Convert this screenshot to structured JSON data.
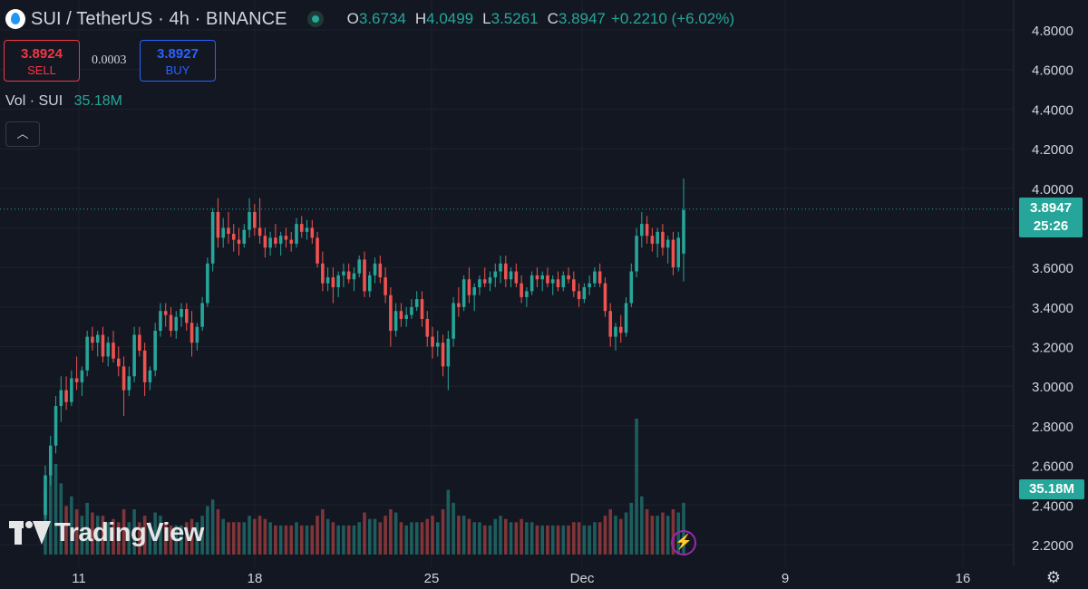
{
  "header": {
    "symbol_title": "SUI / TetherUS · 4h · BINANCE",
    "ohlc": {
      "open_label": "O",
      "open": "3.6734",
      "high_label": "H",
      "high": "4.0499",
      "low_label": "L",
      "low": "3.5261",
      "close_label": "C",
      "close": "3.8947",
      "change": "+0.2210 (+6.02%)"
    }
  },
  "trade": {
    "sell_price": "3.8924",
    "sell_label": "SELL",
    "spread": "0.0003",
    "buy_price": "3.8927",
    "buy_label": "BUY"
  },
  "volume_legend": {
    "name": "Vol · SUI",
    "value": "35.18M"
  },
  "collapse_glyph": "︿",
  "price_tag": {
    "price": "3.8947",
    "countdown": "25:26"
  },
  "volume_tag": "35.18M",
  "brand": "TradingView",
  "icons": [
    "sui-logo-icon",
    "market-open-icon",
    "collapse-icon",
    "tradingview-logo-icon",
    "flash-icon",
    "settings-icon"
  ],
  "colors": {
    "up": "#26a69a",
    "down": "#ef5350",
    "background": "#131722",
    "grid": "#1e222d",
    "axis_text": "#d1d4dc"
  },
  "chart_data": {
    "type": "candlestick",
    "title": "SUI / TetherUS · 4h · BINANCE",
    "interval": "4h",
    "y_ticks": [
      "4.8000",
      "4.6000",
      "4.4000",
      "4.2000",
      "4.0000",
      "3.8000",
      "3.6000",
      "3.4000",
      "3.2000",
      "3.0000",
      "2.8000",
      "2.6000",
      "2.4000",
      "2.2000"
    ],
    "ylim": [
      2.15,
      4.85
    ],
    "x_ticks": [
      "11",
      "18",
      "25",
      "Dec",
      "9",
      "16"
    ],
    "last_price": 3.8947,
    "candles": [
      [
        2.35,
        2.6,
        2.33,
        2.55,
        20
      ],
      [
        2.55,
        2.75,
        2.5,
        2.7,
        30
      ],
      [
        2.7,
        2.95,
        2.66,
        2.9,
        28
      ],
      [
        2.9,
        3.05,
        2.82,
        2.98,
        22
      ],
      [
        2.98,
        3.05,
        2.88,
        2.92,
        15
      ],
      [
        2.92,
        3.08,
        2.9,
        3.04,
        18
      ],
      [
        3.04,
        3.15,
        2.98,
        3.02,
        14
      ],
      [
        3.02,
        3.1,
        2.95,
        3.08,
        12
      ],
      [
        3.08,
        3.28,
        3.05,
        3.25,
        16
      ],
      [
        3.25,
        3.3,
        3.18,
        3.22,
        13
      ],
      [
        3.22,
        3.28,
        3.15,
        3.26,
        12
      ],
      [
        3.26,
        3.3,
        3.12,
        3.15,
        12
      ],
      [
        3.15,
        3.25,
        3.1,
        3.22,
        10
      ],
      [
        3.22,
        3.28,
        3.12,
        3.14,
        11
      ],
      [
        3.14,
        3.2,
        3.05,
        3.1,
        10
      ],
      [
        3.1,
        3.15,
        2.85,
        2.98,
        14
      ],
      [
        2.98,
        3.1,
        2.95,
        3.05,
        10
      ],
      [
        3.05,
        3.3,
        3.02,
        3.26,
        14
      ],
      [
        3.26,
        3.3,
        3.15,
        3.18,
        10
      ],
      [
        3.18,
        3.22,
        2.95,
        3.02,
        12
      ],
      [
        3.02,
        3.1,
        2.98,
        3.08,
        10
      ],
      [
        3.08,
        3.32,
        3.05,
        3.28,
        13
      ],
      [
        3.28,
        3.42,
        3.25,
        3.38,
        12
      ],
      [
        3.38,
        3.42,
        3.3,
        3.36,
        10
      ],
      [
        3.36,
        3.4,
        3.25,
        3.28,
        9
      ],
      [
        3.28,
        3.38,
        3.24,
        3.35,
        9
      ],
      [
        3.35,
        3.42,
        3.3,
        3.39,
        9
      ],
      [
        3.39,
        3.42,
        3.28,
        3.32,
        10
      ],
      [
        3.32,
        3.38,
        3.15,
        3.22,
        11
      ],
      [
        3.22,
        3.32,
        3.18,
        3.3,
        10
      ],
      [
        3.3,
        3.45,
        3.28,
        3.42,
        12
      ],
      [
        3.42,
        3.65,
        3.4,
        3.62,
        15
      ],
      [
        3.62,
        3.9,
        3.58,
        3.88,
        17
      ],
      [
        3.88,
        3.95,
        3.7,
        3.75,
        14
      ],
      [
        3.75,
        3.85,
        3.7,
        3.8,
        11
      ],
      [
        3.8,
        3.88,
        3.72,
        3.77,
        10
      ],
      [
        3.77,
        3.82,
        3.68,
        3.74,
        10
      ],
      [
        3.74,
        3.8,
        3.66,
        3.72,
        10
      ],
      [
        3.72,
        3.82,
        3.7,
        3.79,
        10
      ],
      [
        3.79,
        3.95,
        3.75,
        3.88,
        12
      ],
      [
        3.88,
        3.92,
        3.76,
        3.8,
        11
      ],
      [
        3.8,
        3.95,
        3.72,
        3.76,
        12
      ],
      [
        3.76,
        3.8,
        3.65,
        3.7,
        11
      ],
      [
        3.7,
        3.78,
        3.66,
        3.75,
        10
      ],
      [
        3.75,
        3.82,
        3.7,
        3.72,
        9
      ],
      [
        3.72,
        3.78,
        3.66,
        3.76,
        9
      ],
      [
        3.76,
        3.8,
        3.7,
        3.74,
        9
      ],
      [
        3.74,
        3.78,
        3.68,
        3.72,
        9
      ],
      [
        3.72,
        3.85,
        3.7,
        3.82,
        10
      ],
      [
        3.82,
        3.86,
        3.75,
        3.78,
        9
      ],
      [
        3.78,
        3.84,
        3.74,
        3.8,
        9
      ],
      [
        3.8,
        3.84,
        3.72,
        3.75,
        9
      ],
      [
        3.75,
        3.78,
        3.6,
        3.62,
        12
      ],
      [
        3.62,
        3.68,
        3.48,
        3.52,
        14
      ],
      [
        3.52,
        3.6,
        3.48,
        3.55,
        11
      ],
      [
        3.55,
        3.6,
        3.42,
        3.5,
        10
      ],
      [
        3.5,
        3.58,
        3.45,
        3.56,
        9
      ],
      [
        3.56,
        3.62,
        3.5,
        3.58,
        9
      ],
      [
        3.58,
        3.62,
        3.52,
        3.54,
        9
      ],
      [
        3.54,
        3.6,
        3.48,
        3.57,
        9
      ],
      [
        3.57,
        3.66,
        3.55,
        3.64,
        10
      ],
      [
        3.64,
        3.68,
        3.45,
        3.48,
        13
      ],
      [
        3.48,
        3.58,
        3.45,
        3.56,
        11
      ],
      [
        3.56,
        3.65,
        3.52,
        3.62,
        11
      ],
      [
        3.62,
        3.66,
        3.52,
        3.55,
        10
      ],
      [
        3.55,
        3.6,
        3.42,
        3.46,
        12
      ],
      [
        3.46,
        3.5,
        3.2,
        3.28,
        14
      ],
      [
        3.28,
        3.42,
        3.25,
        3.38,
        13
      ],
      [
        3.38,
        3.42,
        3.3,
        3.34,
        10
      ],
      [
        3.34,
        3.4,
        3.3,
        3.36,
        9
      ],
      [
        3.36,
        3.44,
        3.34,
        3.4,
        10
      ],
      [
        3.4,
        3.48,
        3.38,
        3.44,
        10
      ],
      [
        3.44,
        3.48,
        3.3,
        3.34,
        10
      ],
      [
        3.34,
        3.38,
        3.2,
        3.25,
        11
      ],
      [
        3.25,
        3.3,
        3.14,
        3.2,
        12
      ],
      [
        3.2,
        3.28,
        3.15,
        3.22,
        10
      ],
      [
        3.22,
        3.26,
        3.05,
        3.1,
        14
      ],
      [
        3.1,
        3.28,
        2.98,
        3.24,
        20
      ],
      [
        3.24,
        3.45,
        3.2,
        3.42,
        16
      ],
      [
        3.42,
        3.5,
        3.35,
        3.4,
        12
      ],
      [
        3.4,
        3.56,
        3.38,
        3.54,
        12
      ],
      [
        3.54,
        3.6,
        3.42,
        3.46,
        11
      ],
      [
        3.46,
        3.52,
        3.38,
        3.5,
        10
      ],
      [
        3.5,
        3.56,
        3.46,
        3.54,
        10
      ],
      [
        3.54,
        3.6,
        3.5,
        3.52,
        9
      ],
      [
        3.52,
        3.58,
        3.48,
        3.55,
        9
      ],
      [
        3.55,
        3.62,
        3.5,
        3.58,
        11
      ],
      [
        3.58,
        3.66,
        3.52,
        3.62,
        12
      ],
      [
        3.62,
        3.66,
        3.5,
        3.54,
        11
      ],
      [
        3.54,
        3.6,
        3.5,
        3.58,
        10
      ],
      [
        3.58,
        3.62,
        3.5,
        3.52,
        10
      ],
      [
        3.52,
        3.56,
        3.42,
        3.45,
        11
      ],
      [
        3.45,
        3.5,
        3.4,
        3.48,
        10
      ],
      [
        3.48,
        3.58,
        3.46,
        3.56,
        10
      ],
      [
        3.56,
        3.6,
        3.5,
        3.54,
        9
      ],
      [
        3.54,
        3.58,
        3.48,
        3.56,
        9
      ],
      [
        3.56,
        3.6,
        3.5,
        3.52,
        9
      ],
      [
        3.52,
        3.56,
        3.46,
        3.54,
        9
      ],
      [
        3.54,
        3.58,
        3.48,
        3.5,
        9
      ],
      [
        3.5,
        3.58,
        3.48,
        3.56,
        9
      ],
      [
        3.56,
        3.6,
        3.52,
        3.54,
        9
      ],
      [
        3.54,
        3.58,
        3.45,
        3.48,
        10
      ],
      [
        3.48,
        3.52,
        3.4,
        3.44,
        10
      ],
      [
        3.44,
        3.52,
        3.42,
        3.5,
        9
      ],
      [
        3.5,
        3.56,
        3.46,
        3.52,
        9
      ],
      [
        3.52,
        3.6,
        3.5,
        3.58,
        10
      ],
      [
        3.58,
        3.62,
        3.5,
        3.52,
        10
      ],
      [
        3.52,
        3.55,
        3.35,
        3.38,
        12
      ],
      [
        3.38,
        3.42,
        3.2,
        3.25,
        14
      ],
      [
        3.25,
        3.32,
        3.18,
        3.3,
        12
      ],
      [
        3.3,
        3.36,
        3.22,
        3.27,
        11
      ],
      [
        3.27,
        3.45,
        3.25,
        3.42,
        13
      ],
      [
        3.42,
        3.62,
        3.4,
        3.58,
        16
      ],
      [
        3.58,
        3.8,
        3.55,
        3.76,
        42
      ],
      [
        3.76,
        3.88,
        3.7,
        3.82,
        18
      ],
      [
        3.82,
        3.86,
        3.72,
        3.76,
        14
      ],
      [
        3.76,
        3.8,
        3.68,
        3.72,
        12
      ],
      [
        3.72,
        3.8,
        3.65,
        3.78,
        12
      ],
      [
        3.78,
        3.82,
        3.66,
        3.7,
        13
      ],
      [
        3.7,
        3.76,
        3.62,
        3.74,
        12
      ],
      [
        3.74,
        3.78,
        3.56,
        3.6,
        14
      ],
      [
        3.6,
        3.78,
        3.58,
        3.75,
        13
      ],
      [
        3.67,
        4.05,
        3.53,
        3.89,
        16
      ]
    ]
  }
}
